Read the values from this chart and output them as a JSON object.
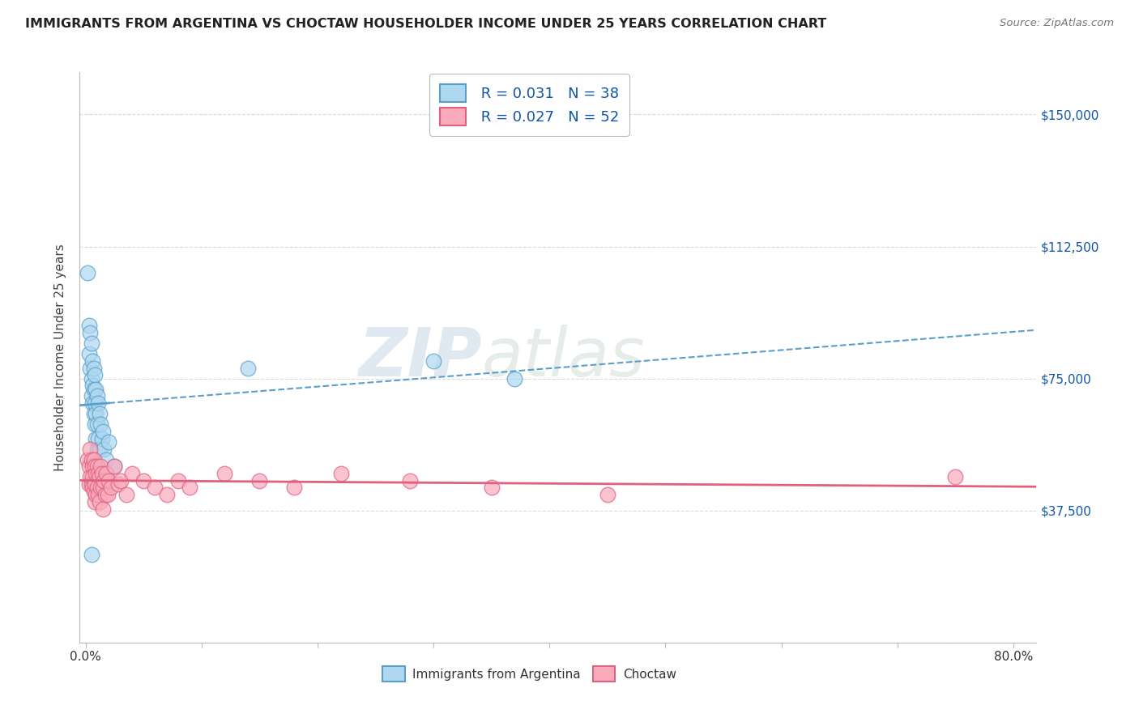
{
  "title": "IMMIGRANTS FROM ARGENTINA VS CHOCTAW HOUSEHOLDER INCOME UNDER 25 YEARS CORRELATION CHART",
  "source": "Source: ZipAtlas.com",
  "ylabel": "Householder Income Under 25 years",
  "y_ticks": [
    0,
    37500,
    75000,
    112500,
    150000
  ],
  "y_tick_labels": [
    "",
    "$37,500",
    "$75,000",
    "$112,500",
    "$150,000"
  ],
  "xlim": [
    -0.005,
    0.82
  ],
  "ylim": [
    5000,
    162000
  ],
  "R_argentina": 0.031,
  "N_argentina": 38,
  "R_choctaw": 0.027,
  "N_choctaw": 52,
  "argentina_color": "#ADD8F0",
  "choctaw_color": "#F9AABB",
  "argentina_edge_color": "#5B9EC9",
  "choctaw_edge_color": "#E06080",
  "argentina_line_color": "#5B9EC9",
  "choctaw_line_color": "#E06080",
  "legend_label_argentina": "Immigrants from Argentina",
  "legend_label_choctaw": "Choctaw",
  "watermark_zip": "ZIP",
  "watermark_atlas": "atlas",
  "background_color": "#ffffff",
  "grid_color": "#DDDDDD",
  "label_color": "#1155AA",
  "title_color": "#222222",
  "argentina_x": [
    0.002,
    0.003,
    0.003,
    0.004,
    0.004,
    0.005,
    0.005,
    0.005,
    0.006,
    0.006,
    0.006,
    0.007,
    0.007,
    0.007,
    0.008,
    0.008,
    0.008,
    0.009,
    0.009,
    0.009,
    0.01,
    0.01,
    0.01,
    0.011,
    0.011,
    0.012,
    0.012,
    0.013,
    0.014,
    0.015,
    0.016,
    0.018,
    0.02,
    0.025,
    0.14,
    0.3,
    0.37,
    0.005
  ],
  "argentina_y": [
    105000,
    90000,
    82000,
    88000,
    78000,
    85000,
    75000,
    70000,
    80000,
    73000,
    68000,
    78000,
    72000,
    65000,
    76000,
    68000,
    62000,
    72000,
    65000,
    58000,
    70000,
    62000,
    55000,
    68000,
    58000,
    65000,
    55000,
    62000,
    58000,
    60000,
    55000,
    52000,
    57000,
    50000,
    78000,
    80000,
    75000,
    25000
  ],
  "choctaw_x": [
    0.002,
    0.003,
    0.003,
    0.004,
    0.004,
    0.005,
    0.005,
    0.006,
    0.006,
    0.006,
    0.007,
    0.007,
    0.008,
    0.008,
    0.008,
    0.009,
    0.009,
    0.01,
    0.01,
    0.011,
    0.011,
    0.012,
    0.012,
    0.013,
    0.013,
    0.014,
    0.015,
    0.015,
    0.016,
    0.017,
    0.018,
    0.019,
    0.02,
    0.022,
    0.025,
    0.028,
    0.03,
    0.035,
    0.04,
    0.05,
    0.06,
    0.07,
    0.08,
    0.09,
    0.12,
    0.15,
    0.18,
    0.22,
    0.28,
    0.35,
    0.45,
    0.75
  ],
  "choctaw_y": [
    52000,
    50000,
    45000,
    55000,
    47000,
    52000,
    45000,
    50000,
    44000,
    47000,
    52000,
    43000,
    50000,
    45000,
    40000,
    48000,
    42000,
    50000,
    44000,
    48000,
    42000,
    47000,
    40000,
    50000,
    44000,
    48000,
    44000,
    38000,
    46000,
    42000,
    48000,
    42000,
    46000,
    44000,
    50000,
    45000,
    46000,
    42000,
    48000,
    46000,
    44000,
    42000,
    46000,
    44000,
    48000,
    46000,
    44000,
    48000,
    46000,
    44000,
    42000,
    47000
  ]
}
